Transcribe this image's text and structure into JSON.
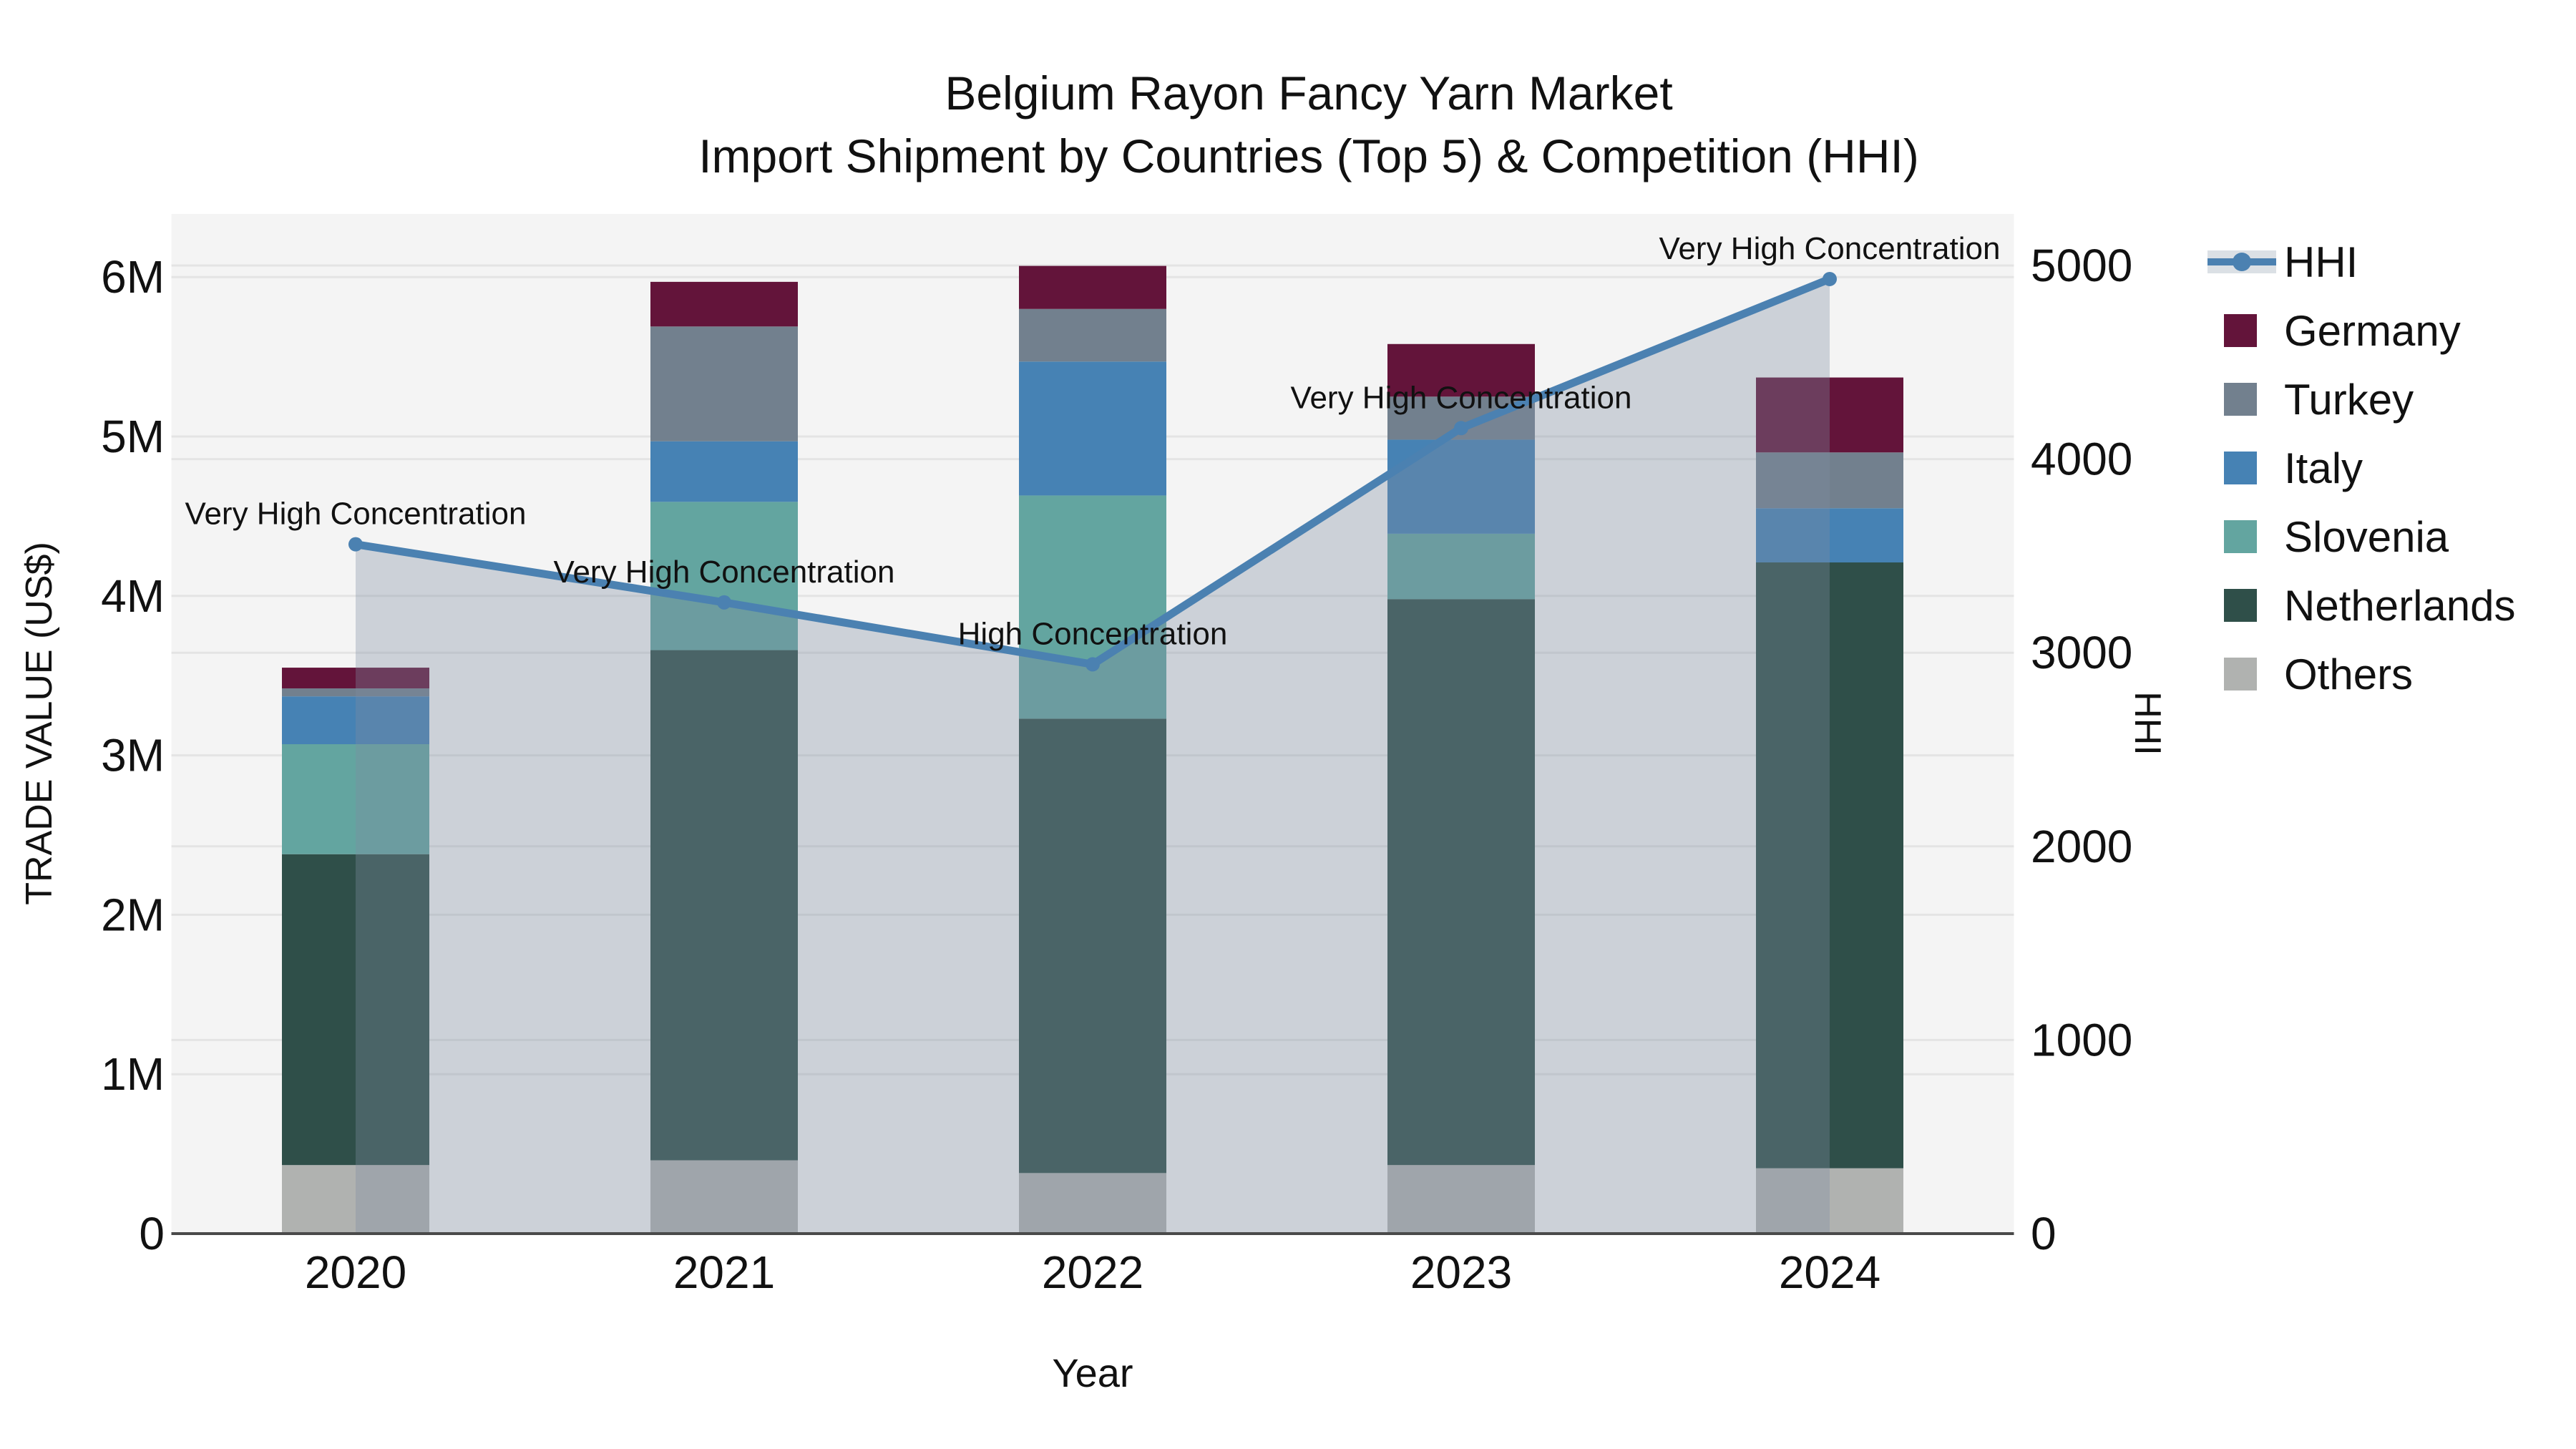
{
  "title_lines": [
    "Belgium Rayon Fancy Yarn Market",
    "Import Shipment by Countries (Top 5) & Competition (HHI)"
  ],
  "chart_data": {
    "type": "bar+line",
    "title": "Belgium Rayon Fancy Yarn Market — Import Shipment by Countries (Top 5) & Competition (HHI)",
    "categories": [
      "2020",
      "2021",
      "2022",
      "2023",
      "2024"
    ],
    "bar_value_unit": "million US$",
    "series": [
      {
        "name": "Others",
        "color": "#b0b2b0",
        "values_musd": [
          0.43,
          0.46,
          0.38,
          0.43,
          0.41
        ]
      },
      {
        "name": "Netherlands",
        "color": "#2f4f49",
        "values_musd": [
          1.95,
          3.2,
          2.85,
          3.55,
          3.8
        ]
      },
      {
        "name": "Slovenia",
        "color": "#63a5a0",
        "values_musd": [
          0.69,
          0.93,
          1.4,
          0.41,
          0.0
        ]
      },
      {
        "name": "Italy",
        "color": "#4682b4",
        "values_musd": [
          0.3,
          0.38,
          0.84,
          0.59,
          0.34
        ]
      },
      {
        "name": "Turkey",
        "color": "#72808e",
        "values_musd": [
          0.05,
          0.72,
          0.33,
          0.27,
          0.35
        ]
      },
      {
        "name": "Germany",
        "color": "#63143a",
        "values_musd": [
          0.13,
          0.28,
          0.27,
          0.33,
          0.47
        ]
      }
    ],
    "line": {
      "name": "HHI",
      "color": "#4b81b1",
      "area_fill": "rgba(127,142,162,0.34)",
      "values": [
        3560,
        3260,
        2940,
        4160,
        4930
      ],
      "annotations": [
        "Very High Concentration",
        "Very High Concentration",
        "High Concentration",
        "Very High Concentration",
        "Very High Concentration"
      ]
    },
    "y_left": {
      "label": "TRADE VALUE (US$)",
      "ticks": [
        "0",
        "1M",
        "2M",
        "3M",
        "4M",
        "5M",
        "6M"
      ],
      "range_musd": [
        0,
        6.4
      ],
      "grid": true
    },
    "y_right": {
      "label": "HHI",
      "ticks": [
        "0",
        "1000",
        "2000",
        "3000",
        "4000",
        "5000"
      ],
      "range": [
        0,
        5260
      ],
      "grid": true
    },
    "x": {
      "label": "Year"
    },
    "legend": {
      "position": "top-right-outside",
      "entries": [
        "HHI",
        "Germany",
        "Turkey",
        "Italy",
        "Slovenia",
        "Netherlands",
        "Others"
      ]
    },
    "plot_bg": "#f4f4f4",
    "grid_color": "#e4e4e4",
    "axisline_color": "#4a4a4a"
  }
}
